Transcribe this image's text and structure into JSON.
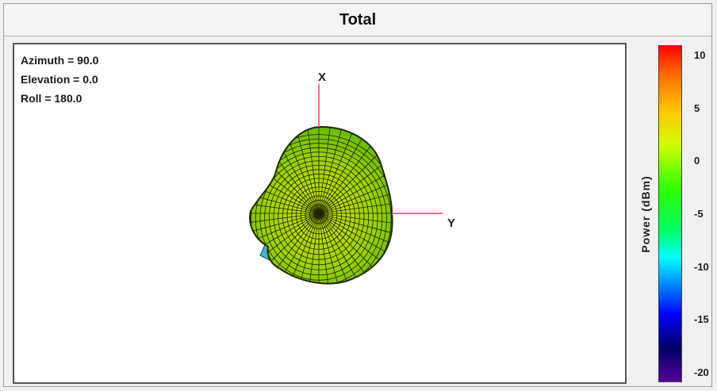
{
  "window": {
    "title": "Total"
  },
  "orientation": {
    "azimuth": "Azimuth = 90.0",
    "elevation": "Elevation = 0.0",
    "roll": "Roll = 180.0"
  },
  "axes": {
    "x_label": "X",
    "y_label": "Y"
  },
  "colorbar": {
    "label": "Power  (dBm)",
    "ticks": [
      "10",
      "5",
      "0",
      "-5",
      "-10",
      "-15",
      "-20"
    ]
  },
  "colors": {
    "pattern_fill": "#9bd000",
    "pattern_mesh": "#222a00",
    "axis": "#ff6a8a",
    "lobe": "#3fb7c8"
  }
}
